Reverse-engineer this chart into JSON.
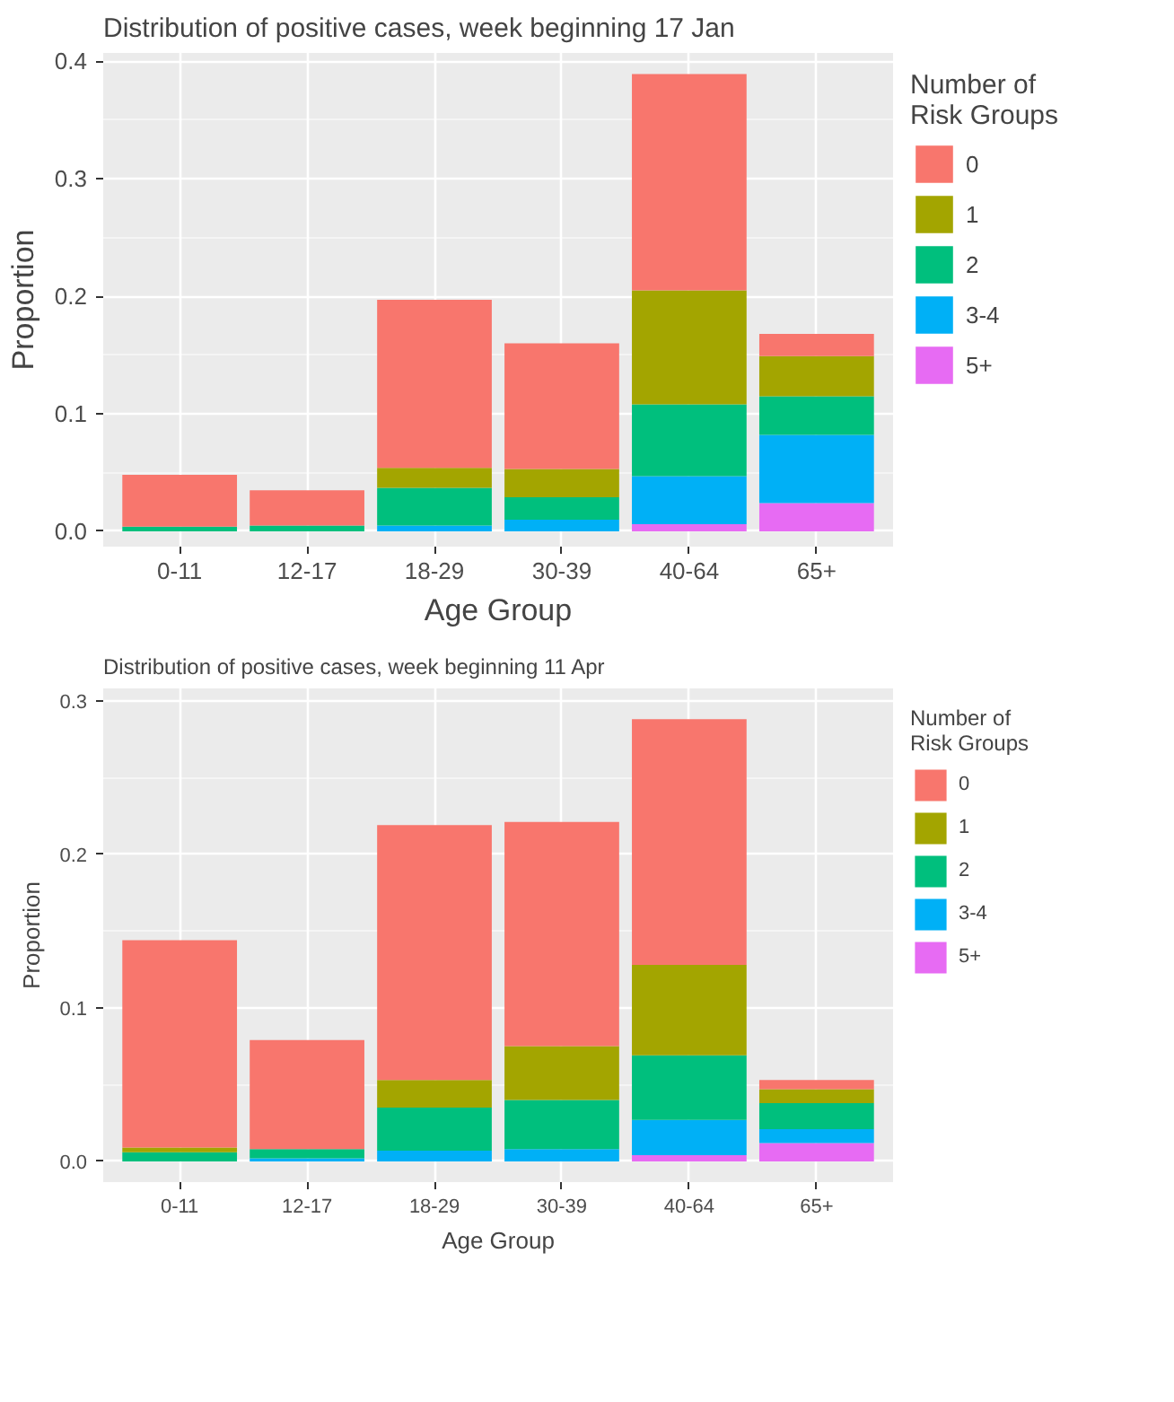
{
  "chart_data": [
    {
      "type": "bar",
      "title": "Distribution of positive cases, week beginning 17 Jan",
      "xlabel": "Age Group",
      "ylabel": "Proportion",
      "legend_title": "Number of\nRisk Groups",
      "categories": [
        "0-11",
        "12-17",
        "18-29",
        "30-39",
        "40-64",
        "65+"
      ],
      "stacked": true,
      "ylim": [
        -0.013,
        0.407
      ],
      "yticks": [
        {
          "value": 0,
          "label": "0.0"
        },
        {
          "value": 0.1,
          "label": "0.1"
        },
        {
          "value": 0.2,
          "label": "0.2"
        },
        {
          "value": 0.3,
          "label": "0.3"
        },
        {
          "value": 0.4,
          "label": "0.4"
        }
      ],
      "grid": true,
      "legend": "right",
      "series": [
        {
          "name": "5+",
          "color": "#e76bf3",
          "values": [
            0,
            0,
            0,
            0,
            0.006,
            0.024
          ]
        },
        {
          "name": "3-4",
          "color": "#00b0f6",
          "values": [
            0,
            0,
            0.005,
            0.01,
            0.041,
            0.058
          ]
        },
        {
          "name": "2",
          "color": "#00bf7d",
          "values": [
            0.004,
            0.005,
            0.032,
            0.019,
            0.061,
            0.033
          ]
        },
        {
          "name": "1",
          "color": "#a3a500",
          "values": [
            0,
            0,
            0.017,
            0.024,
            0.097,
            0.034
          ]
        },
        {
          "name": "0",
          "color": "#f8766d",
          "values": [
            0.044,
            0.03,
            0.143,
            0.107,
            0.184,
            0.019
          ]
        }
      ]
    },
    {
      "type": "bar",
      "title": "Distribution of positive cases, week beginning 11 Apr",
      "xlabel": "Age Group",
      "ylabel": "Proportion",
      "legend_title": "Number of\nRisk Groups",
      "categories": [
        "0-11",
        "12-17",
        "18-29",
        "30-39",
        "40-64",
        "65+"
      ],
      "stacked": true,
      "ylim": [
        -0.0135,
        0.308
      ],
      "yticks": [
        {
          "value": 0,
          "label": "0.0"
        },
        {
          "value": 0.1,
          "label": "0.1"
        },
        {
          "value": 0.2,
          "label": "0.2"
        },
        {
          "value": 0.3,
          "label": "0.3"
        }
      ],
      "grid": true,
      "legend": "right",
      "series": [
        {
          "name": "5+",
          "color": "#e76bf3",
          "values": [
            0,
            0,
            0,
            0,
            0.004,
            0.012
          ]
        },
        {
          "name": "3-4",
          "color": "#00b0f6",
          "values": [
            0,
            0.002,
            0.007,
            0.008,
            0.023,
            0.009
          ]
        },
        {
          "name": "2",
          "color": "#00bf7d",
          "values": [
            0.006,
            0.006,
            0.028,
            0.032,
            0.042,
            0.017
          ]
        },
        {
          "name": "1",
          "color": "#a3a500",
          "values": [
            0.003,
            0,
            0.018,
            0.035,
            0.059,
            0.009
          ]
        },
        {
          "name": "0",
          "color": "#f8766d",
          "values": [
            0.135,
            0.071,
            0.166,
            0.146,
            0.16,
            0.006
          ]
        }
      ]
    }
  ]
}
